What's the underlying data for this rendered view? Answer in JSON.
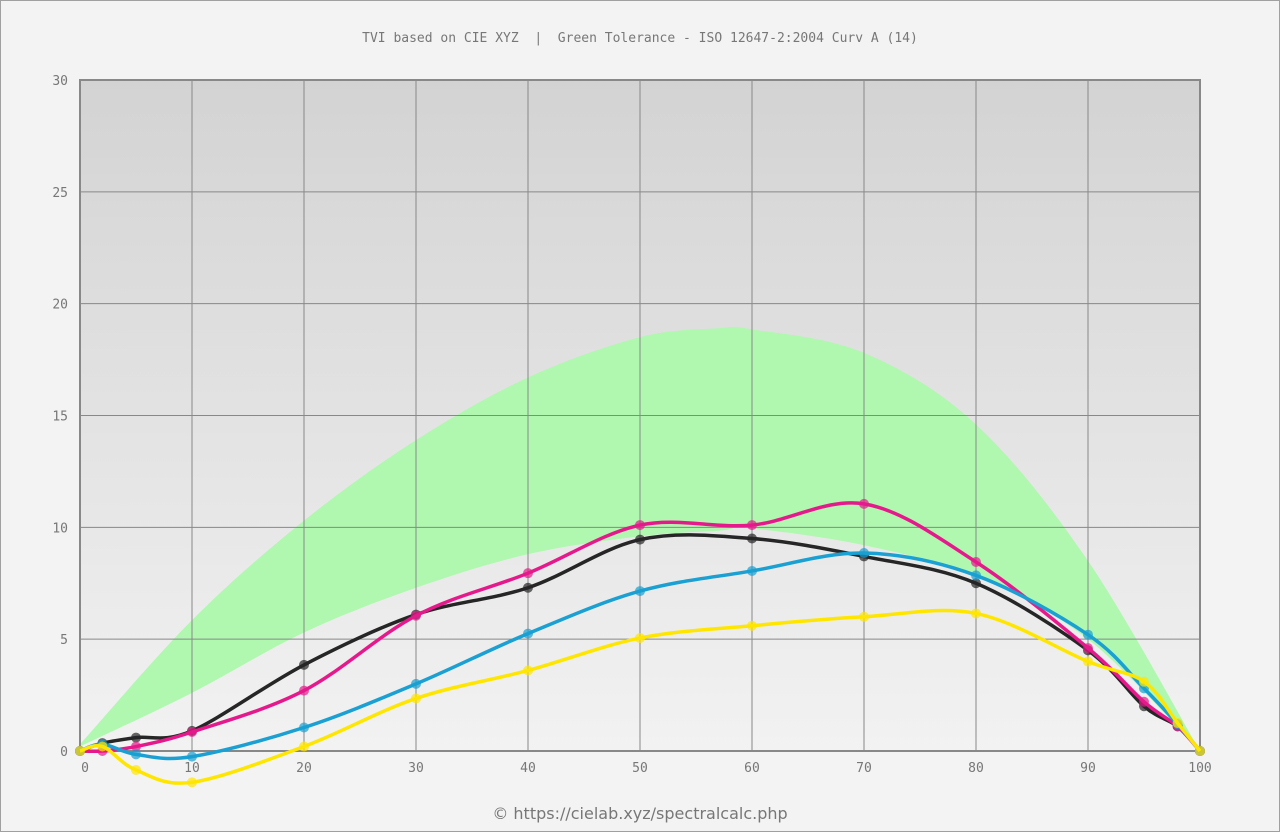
{
  "title": "TVI based on CIE XYZ  |  Green Tolerance - ISO 12647-2:2004 Curv A (14)",
  "credit": "© https://cielab.xyz/spectralcalc.php",
  "chart_data": {
    "type": "line",
    "title": "TVI based on CIE XYZ  |  Green Tolerance - ISO 12647-2:2004 Curv A (14)",
    "xlabel": "",
    "ylabel": "",
    "xlim": [
      0,
      100
    ],
    "ylim": [
      0,
      30
    ],
    "xticks": [
      0,
      10,
      20,
      30,
      40,
      50,
      60,
      70,
      80,
      90,
      100
    ],
    "yticks": [
      0,
      5,
      10,
      15,
      20,
      25,
      30
    ],
    "grid": true,
    "x": [
      0,
      2,
      5,
      10,
      20,
      30,
      40,
      50,
      60,
      70,
      80,
      90,
      95,
      98,
      100
    ],
    "series": [
      {
        "name": "black",
        "color": "#262626",
        "values": [
          0,
          0.35,
          0.6,
          0.9,
          3.85,
          6.1,
          7.3,
          9.45,
          9.5,
          8.7,
          7.5,
          4.5,
          2.0,
          1.1,
          0
        ]
      },
      {
        "name": "magenta",
        "color": "#e6198c",
        "values": [
          0,
          0,
          0.2,
          0.85,
          2.7,
          6.05,
          7.95,
          10.1,
          10.1,
          11.05,
          8.45,
          4.6,
          2.2,
          1.1,
          0
        ]
      },
      {
        "name": "cyan",
        "color": "#1aa0d2",
        "values": [
          0,
          0.3,
          -0.15,
          -0.25,
          1.05,
          3.0,
          5.25,
          7.15,
          8.05,
          8.85,
          7.85,
          5.2,
          2.8,
          1.2,
          0
        ]
      },
      {
        "name": "yellow",
        "color": "#ffe600",
        "values": [
          0,
          0.2,
          -0.85,
          -1.4,
          0.2,
          2.35,
          3.6,
          5.05,
          5.6,
          6.0,
          6.15,
          4.0,
          3.1,
          1.25,
          0
        ]
      }
    ],
    "tolerance_band": {
      "name": "Green Tolerance",
      "color": "#b0f7b0",
      "x": [
        0,
        10,
        20,
        30,
        40,
        50,
        57,
        60,
        70,
        80,
        90,
        100
      ],
      "upper": [
        0.3,
        5.85,
        10.3,
        13.9,
        16.7,
        18.5,
        18.9,
        18.85,
        17.8,
        14.6,
        8.5,
        0
      ],
      "lower": [
        0.2,
        2.6,
        5.3,
        7.3,
        8.8,
        9.6,
        9.85,
        9.95,
        9.2,
        7.8,
        5.0,
        0
      ]
    }
  }
}
